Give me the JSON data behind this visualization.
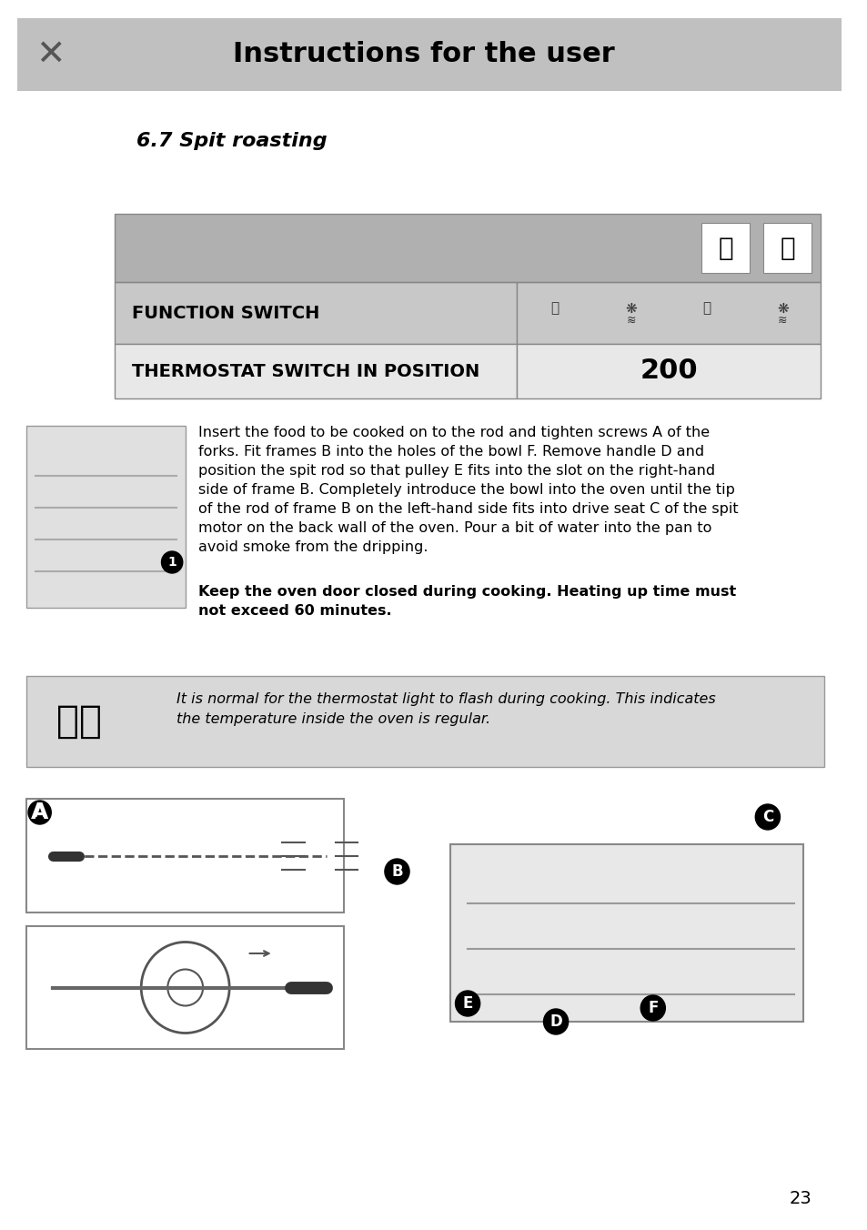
{
  "title": "Instructions for the user",
  "section_title": "6.7 Spit roasting",
  "function_switch_label": "FUNCTION SWITCH",
  "thermostat_label": "THERMOSTAT SWITCH IN POSITION",
  "thermostat_value": "200",
  "main_text_normal": "Insert the food to be cooked on to the rod and tighten screws ",
  "main_text_bold_A": "A",
  "main_text_after_A": " of the\nforks. Fit frames ",
  "main_text_bold_B1": "B",
  "main_text_after_B1": " into the holes of the bowl ",
  "main_text_bold_F": "F.",
  "main_text_after_F": " Remove handle ",
  "main_text_bold_D": "D",
  "main_text_after_D": " and\nposition the spit rod so that pulley ",
  "main_text_bold_E": "E",
  "main_text_after_E": " fits into the slot on the right-hand\nside of frame ",
  "main_text_bold_B2": "B",
  "main_text_after_B2": ". Completely introduce the bowl into the oven until the tip\nof the rod of frame ",
  "main_text_bold_B3": "B",
  "main_text_after_B3": " on the left-hand side fits into drive seat ",
  "main_text_bold_C": "C",
  "main_text_after_C": " of the spit\nmotor on the back wall of the oven. Pour a bit of water into the pan to\navoid smoke from the dripping.",
  "bold_warning": "Keep the oven door closed during cooking. Heating up time must\nnot exceed 60 minutes.",
  "italic_note": "It is normal for the thermostat light to flash during cooking. This indicates\nthe temperature inside the oven is regular.",
  "page_number": "23",
  "header_bg": "#c0c0c0",
  "table_header_bg": "#b0b0b0",
  "table_row1_bg": "#c8c8c8",
  "table_row2_bg": "#e8e8e8",
  "note_bg": "#d8d8d8",
  "page_bg": "#ffffff"
}
